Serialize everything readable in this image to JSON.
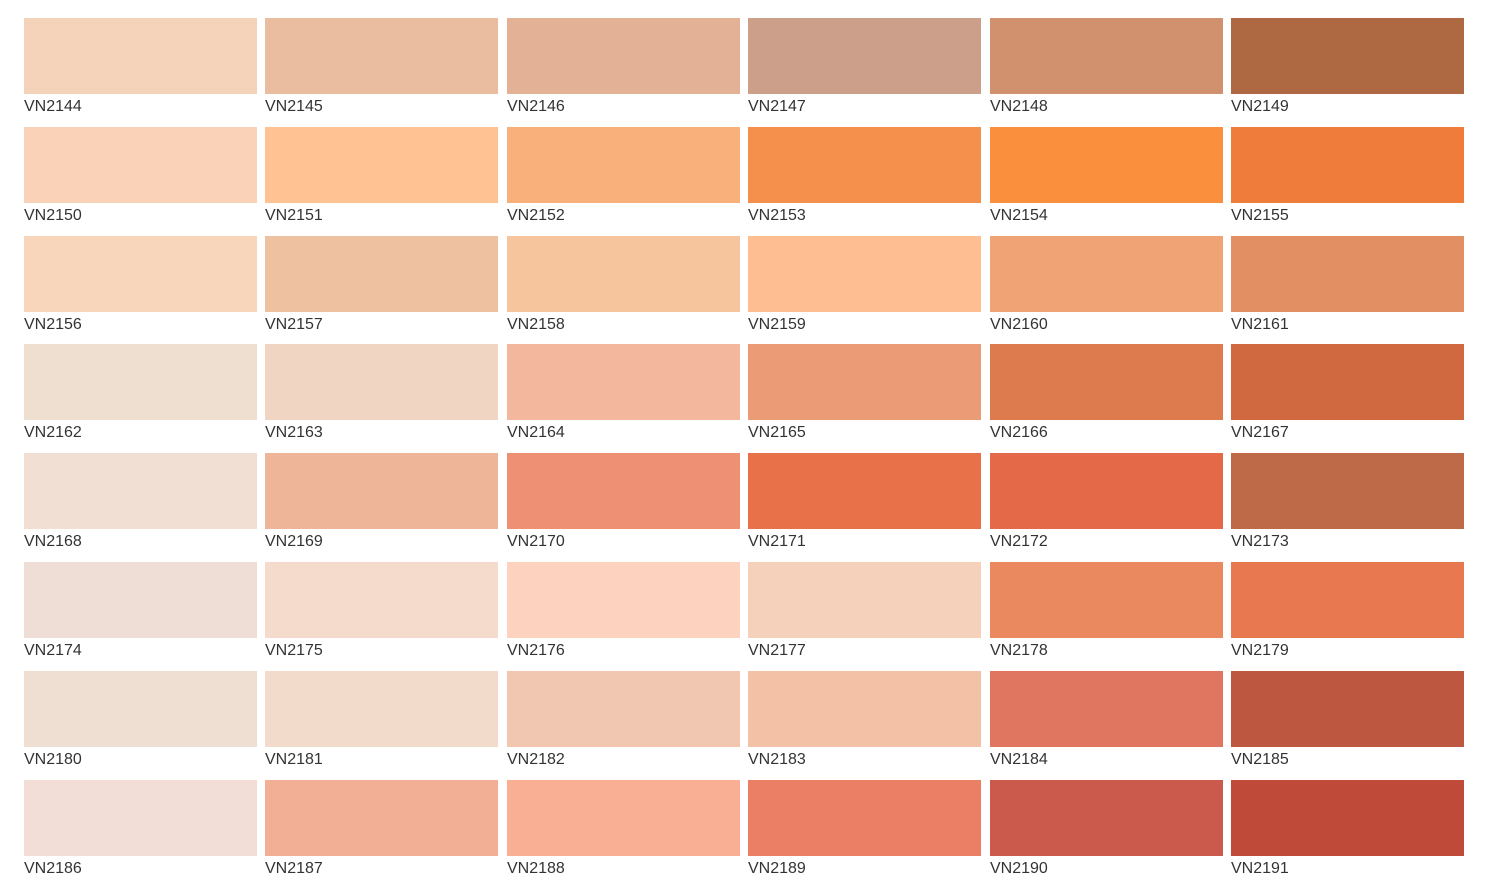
{
  "swatches": [
    {
      "code": "VN2144",
      "color": "#F5D3BA"
    },
    {
      "code": "VN2145",
      "color": "#EABDA0"
    },
    {
      "code": "VN2146",
      "color": "#E2B196"
    },
    {
      "code": "VN2147",
      "color": "#CC9F8A"
    },
    {
      "code": "VN2148",
      "color": "#D2916E"
    },
    {
      "code": "VN2149",
      "color": "#AE6942"
    },
    {
      "code": "VN2150",
      "color": "#F9D2B7"
    },
    {
      "code": "VN2151",
      "color": "#FEC293"
    },
    {
      "code": "VN2152",
      "color": "#F9B07A"
    },
    {
      "code": "VN2153",
      "color": "#F48F4C"
    },
    {
      "code": "VN2154",
      "color": "#FA8F3D"
    },
    {
      "code": "VN2155",
      "color": "#F07C3B"
    },
    {
      "code": "VN2156",
      "color": "#F8D6BC"
    },
    {
      "code": "VN2157",
      "color": "#EEC2A1"
    },
    {
      "code": "VN2158",
      "color": "#F6C59E"
    },
    {
      "code": "VN2159",
      "color": "#FEBE92"
    },
    {
      "code": "VN2160",
      "color": "#F0A476"
    },
    {
      "code": "VN2161",
      "color": "#E29063"
    },
    {
      "code": "VN2162",
      "color": "#EEDFD0"
    },
    {
      "code": "VN2163",
      "color": "#F0D6C2"
    },
    {
      "code": "VN2164",
      "color": "#F2B79C"
    },
    {
      "code": "VN2165",
      "color": "#EB9C77"
    },
    {
      "code": "VN2166",
      "color": "#DE7B4E"
    },
    {
      "code": "VN2167",
      "color": "#D06840"
    },
    {
      "code": "VN2168",
      "color": "#F0DFD2"
    },
    {
      "code": "VN2169",
      "color": "#EFB598"
    },
    {
      "code": "VN2170",
      "color": "#EE9074"
    },
    {
      "code": "VN2171",
      "color": "#E8714A"
    },
    {
      "code": "VN2172",
      "color": "#E46949"
    },
    {
      "code": "VN2173",
      "color": "#BE6A49"
    },
    {
      "code": "VN2174",
      "color": "#EFDED5"
    },
    {
      "code": "VN2175",
      "color": "#F5DBCB"
    },
    {
      "code": "VN2176",
      "color": "#FDD3C0"
    },
    {
      "code": "VN2177",
      "color": "#F5D0BB"
    },
    {
      "code": "VN2178",
      "color": "#EA8860"
    },
    {
      "code": "VN2179",
      "color": "#E8784F"
    },
    {
      "code": "VN2180",
      "color": "#EFDFD3"
    },
    {
      "code": "VN2181",
      "color": "#F3DBCB"
    },
    {
      "code": "VN2182",
      "color": "#F1C7B1"
    },
    {
      "code": "VN2183",
      "color": "#F2C1A6"
    },
    {
      "code": "VN2184",
      "color": "#E07660"
    },
    {
      "code": "VN2185",
      "color": "#BE573F"
    },
    {
      "code": "VN2186",
      "color": "#F2DED6"
    },
    {
      "code": "VN2187",
      "color": "#F3AE96"
    },
    {
      "code": "VN2188",
      "color": "#F8AF94"
    },
    {
      "code": "VN2189",
      "color": "#EB7F66"
    },
    {
      "code": "VN2190",
      "color": "#CB5A4D"
    },
    {
      "code": "VN2191",
      "color": "#C04A3A"
    }
  ]
}
